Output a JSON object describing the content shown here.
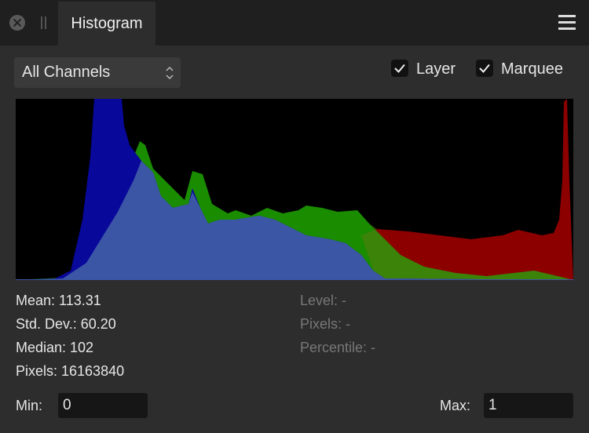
{
  "tab": {
    "title": "Histogram"
  },
  "dropdown": {
    "value": "All Channels"
  },
  "checkboxes": [
    {
      "label": "Layer"
    },
    {
      "label": "Marquee"
    }
  ],
  "stats": {
    "left": [
      "Mean: 113.31",
      "Std. Dev.: 60.20",
      "Median: 102",
      "Pixels: 16163840"
    ],
    "right": [
      "Level: -",
      "Pixels: -",
      "Percentile: -"
    ]
  },
  "min": {
    "label": "Min:",
    "value": "0"
  },
  "max": {
    "label": "Max:",
    "value": "1"
  }
}
